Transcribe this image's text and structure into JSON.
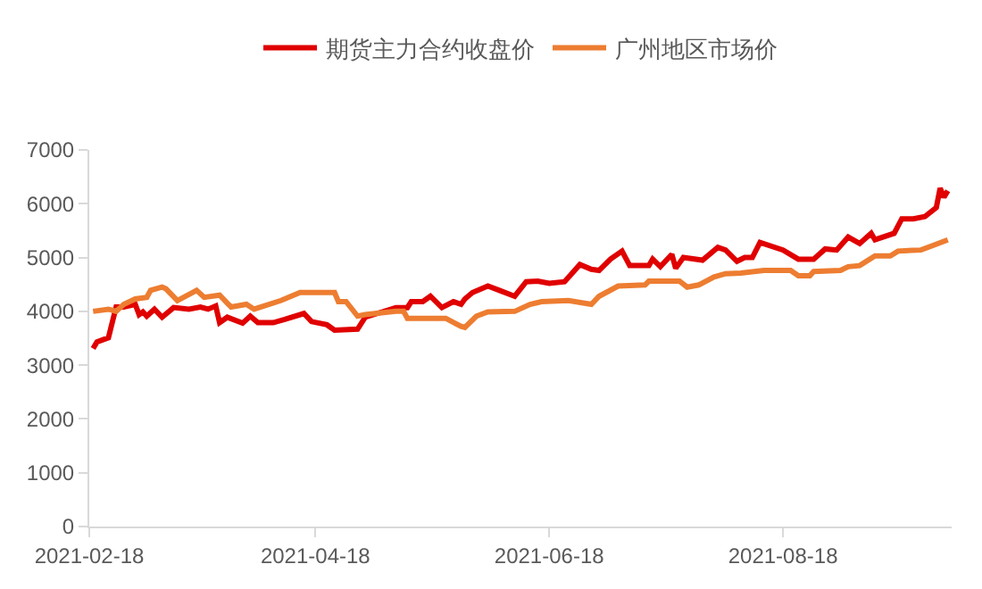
{
  "chart_data": {
    "type": "line",
    "xlim": [
      "2021-02-18",
      "2021-10-01"
    ],
    "xticks": [
      "2021-02-18",
      "2021-04-18",
      "2021-06-18",
      "2021-08-18"
    ],
    "ylim": [
      0,
      7000
    ],
    "yticks": [
      0,
      1000,
      2000,
      3000,
      4000,
      5000,
      6000,
      7000
    ],
    "grid": false,
    "legend": "top",
    "marker": "none",
    "line_style": "solid",
    "series": [
      {
        "name": "期货主力合约收盘价",
        "color": "#e00000",
        "x": [
          "2021-02-19",
          "2021-02-20",
          "2021-02-23",
          "2021-02-25",
          "2021-02-27",
          "2021-03-02",
          "2021-03-03",
          "2021-03-04",
          "2021-03-05",
          "2021-03-07",
          "2021-03-09",
          "2021-03-12",
          "2021-03-16",
          "2021-03-19",
          "2021-03-21",
          "2021-03-23",
          "2021-03-24",
          "2021-03-26",
          "2021-03-30",
          "2021-04-01",
          "2021-04-03",
          "2021-04-07",
          "2021-04-10",
          "2021-04-15",
          "2021-04-17",
          "2021-04-21",
          "2021-04-23",
          "2021-04-29",
          "2021-05-01",
          "2021-05-09",
          "2021-05-12",
          "2021-05-13",
          "2021-05-16",
          "2021-05-18",
          "2021-05-21",
          "2021-05-24",
          "2021-05-26",
          "2021-05-27",
          "2021-05-29",
          "2021-06-02",
          "2021-06-05",
          "2021-06-09",
          "2021-06-12",
          "2021-06-15",
          "2021-06-18",
          "2021-06-22",
          "2021-06-26",
          "2021-06-29",
          "2021-07-01",
          "2021-07-04",
          "2021-07-07",
          "2021-07-09",
          "2021-07-14",
          "2021-07-15",
          "2021-07-17",
          "2021-07-20",
          "2021-07-21",
          "2021-07-23",
          "2021-07-28",
          "2021-08-01",
          "2021-08-03",
          "2021-08-06",
          "2021-08-08",
          "2021-08-10",
          "2021-08-12",
          "2021-08-18",
          "2021-08-22",
          "2021-08-26",
          "2021-08-29",
          "2021-09-01",
          "2021-09-04",
          "2021-09-07",
          "2021-09-10",
          "2021-09-11",
          "2021-09-16",
          "2021-09-18",
          "2021-09-21",
          "2021-09-24",
          "2021-09-27",
          "2021-09-28",
          "2021-09-29",
          "2021-09-30"
        ],
        "values": [
          3310,
          3430,
          3510,
          4080,
          4080,
          4130,
          3940,
          3990,
          3910,
          4040,
          3890,
          4070,
          4040,
          4080,
          4040,
          4100,
          3790,
          3890,
          3780,
          3910,
          3790,
          3790,
          3850,
          3960,
          3810,
          3750,
          3650,
          3670,
          3890,
          4070,
          4070,
          4180,
          4180,
          4280,
          4070,
          4180,
          4130,
          4230,
          4350,
          4470,
          4390,
          4280,
          4550,
          4560,
          4520,
          4550,
          4870,
          4780,
          4760,
          4970,
          5120,
          4850,
          4850,
          4970,
          4830,
          5060,
          4800,
          5000,
          4950,
          5190,
          5140,
          4930,
          5000,
          5000,
          5280,
          5140,
          4970,
          4970,
          5160,
          5140,
          5380,
          5260,
          5450,
          5330,
          5450,
          5720,
          5720,
          5760,
          5930,
          6290,
          6120,
          6240
        ]
      },
      {
        "name": "广州地区市场价",
        "color": "#ed7d31",
        "x": [
          "2021-02-19",
          "2021-02-23",
          "2021-02-25",
          "2021-02-27",
          "2021-03-02",
          "2021-03-05",
          "2021-03-06",
          "2021-03-09",
          "2021-03-10",
          "2021-03-13",
          "2021-03-18",
          "2021-03-20",
          "2021-03-24",
          "2021-03-27",
          "2021-03-31",
          "2021-04-02",
          "2021-04-09",
          "2021-04-14",
          "2021-04-23",
          "2021-04-24",
          "2021-04-26",
          "2021-04-29",
          "2021-05-01",
          "2021-05-09",
          "2021-05-11",
          "2021-05-12",
          "2021-05-22",
          "2021-05-26",
          "2021-05-27",
          "2021-05-30",
          "2021-06-02",
          "2021-06-09",
          "2021-06-13",
          "2021-06-16",
          "2021-06-23",
          "2021-06-29",
          "2021-07-01",
          "2021-07-06",
          "2021-07-13",
          "2021-07-14",
          "2021-07-22",
          "2021-07-24",
          "2021-07-27",
          "2021-07-31",
          "2021-08-03",
          "2021-08-07",
          "2021-08-13",
          "2021-08-20",
          "2021-08-22",
          "2021-08-25",
          "2021-08-26",
          "2021-09-02",
          "2021-09-04",
          "2021-09-07",
          "2021-09-11",
          "2021-09-15",
          "2021-09-17",
          "2021-09-23",
          "2021-09-26",
          "2021-09-30"
        ],
        "values": [
          4000,
          4040,
          4000,
          4130,
          4230,
          4260,
          4390,
          4450,
          4420,
          4200,
          4390,
          4260,
          4300,
          4080,
          4130,
          4040,
          4200,
          4350,
          4350,
          4180,
          4180,
          3910,
          3940,
          4000,
          4000,
          3870,
          3870,
          3720,
          3700,
          3910,
          3990,
          4000,
          4130,
          4180,
          4200,
          4130,
          4280,
          4470,
          4490,
          4560,
          4560,
          4450,
          4490,
          4640,
          4700,
          4710,
          4760,
          4760,
          4660,
          4660,
          4740,
          4760,
          4830,
          4850,
          5030,
          5030,
          5120,
          5140,
          5220,
          5330
        ]
      }
    ]
  }
}
